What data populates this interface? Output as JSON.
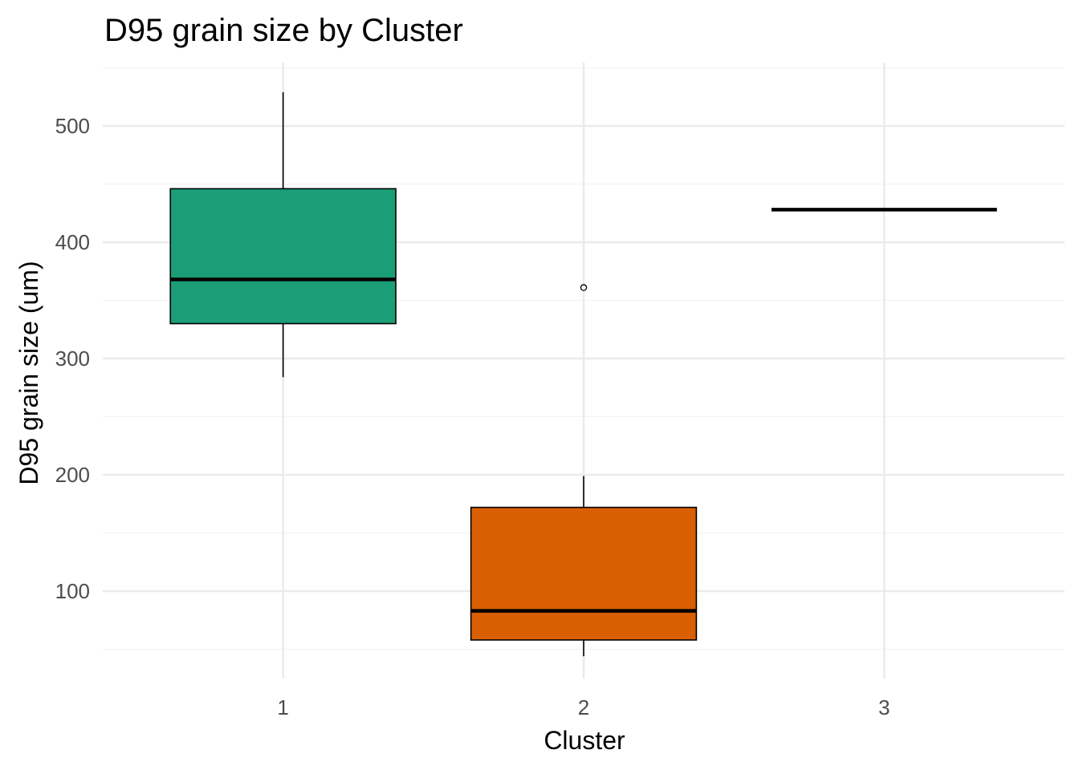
{
  "chart_data": {
    "type": "box",
    "title": "D95 grain size by Cluster",
    "xlabel": "Cluster",
    "ylabel": "D95 grain size (um)",
    "categories": [
      "1",
      "2",
      "3"
    ],
    "y_ticks": [
      100,
      200,
      300,
      400,
      500
    ],
    "ylim": [
      20,
      555
    ],
    "grid": true,
    "legend": "none",
    "boxes": [
      {
        "category": "1",
        "lower_whisker": 284,
        "q1": 330,
        "median": 368,
        "q3": 446,
        "upper_whisker": 529,
        "outliers": [],
        "color": "#1b9e77"
      },
      {
        "category": "2",
        "lower_whisker": 44,
        "q1": 58,
        "median": 83,
        "q3": 172,
        "upper_whisker": 199,
        "outliers": [
          361
        ],
        "color": "#d95f02"
      },
      {
        "category": "3",
        "lower_whisker": 428,
        "q1": 428,
        "median": 428,
        "q3": 428,
        "upper_whisker": 428,
        "outliers": [],
        "color": "#7570b3"
      }
    ]
  }
}
